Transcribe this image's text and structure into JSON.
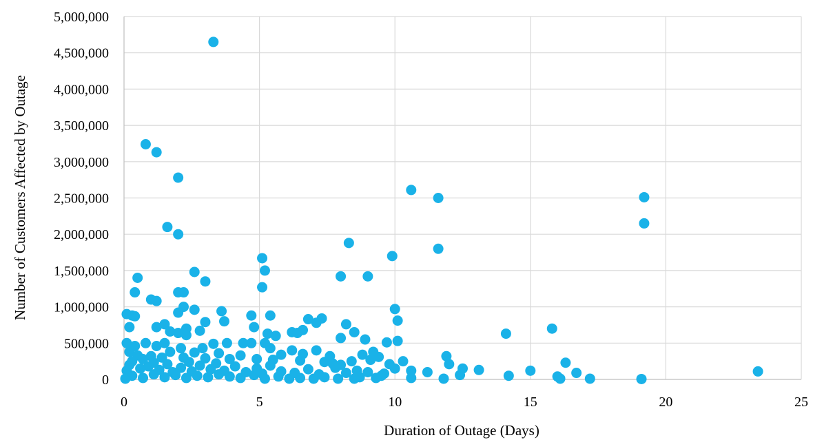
{
  "chart_data": {
    "type": "scatter",
    "title": "",
    "xlabel": "Duration of Outage (Days)",
    "ylabel": "Number of Customers Affected by Outage",
    "xlim": [
      0,
      25
    ],
    "ylim": [
      0,
      5000000
    ],
    "x_ticks": [
      0,
      5,
      10,
      15,
      20,
      25
    ],
    "y_ticks": [
      0,
      500000,
      1000000,
      1500000,
      2000000,
      2500000,
      3000000,
      3500000,
      4000000,
      4500000,
      5000000
    ],
    "x_tick_labels": [
      "0",
      "5",
      "10",
      "15",
      "20",
      "25"
    ],
    "y_tick_labels": [
      "0",
      "500,000",
      "1,000,000",
      "1,500,000",
      "2,000,000",
      "2,500,000",
      "3,000,000",
      "3,500,000",
      "4,000,000",
      "4,500,000",
      "5,000,000"
    ],
    "grid": "vertical and horizontal major gridlines",
    "legend": "none",
    "marker_color": "#1ab2e8",
    "series": [
      {
        "points": [
          [
            3.3,
            4650000
          ],
          [
            0.8,
            3240000
          ],
          [
            1.2,
            3130000
          ],
          [
            2.0,
            2780000
          ],
          [
            1.6,
            2100000
          ],
          [
            2.0,
            2000000
          ],
          [
            10.6,
            2610000
          ],
          [
            11.6,
            2500000
          ],
          [
            19.2,
            2510000
          ],
          [
            19.2,
            2150000
          ],
          [
            11.6,
            1800000
          ],
          [
            8.3,
            1880000
          ],
          [
            9.9,
            1700000
          ],
          [
            5.1,
            1670000
          ],
          [
            5.2,
            1500000
          ],
          [
            2.6,
            1480000
          ],
          [
            8.0,
            1420000
          ],
          [
            9.0,
            1420000
          ],
          [
            0.5,
            1400000
          ],
          [
            3.0,
            1350000
          ],
          [
            5.1,
            1270000
          ],
          [
            0.4,
            1200000
          ],
          [
            2.0,
            1200000
          ],
          [
            2.2,
            1200000
          ],
          [
            1.0,
            1100000
          ],
          [
            1.2,
            1080000
          ],
          [
            2.2,
            1000000
          ],
          [
            10.0,
            970000
          ],
          [
            2.6,
            960000
          ],
          [
            3.6,
            940000
          ],
          [
            2.0,
            920000
          ],
          [
            0.1,
            900000
          ],
          [
            0.3,
            880000
          ],
          [
            0.4,
            870000
          ],
          [
            4.7,
            880000
          ],
          [
            5.4,
            880000
          ],
          [
            6.8,
            830000
          ],
          [
            7.3,
            840000
          ],
          [
            3.7,
            800000
          ],
          [
            3.0,
            790000
          ],
          [
            10.1,
            810000
          ],
          [
            7.1,
            780000
          ],
          [
            1.5,
            760000
          ],
          [
            8.2,
            760000
          ],
          [
            0.2,
            720000
          ],
          [
            1.2,
            720000
          ],
          [
            2.3,
            700000
          ],
          [
            4.8,
            720000
          ],
          [
            15.8,
            700000
          ],
          [
            6.6,
            680000
          ],
          [
            2.8,
            670000
          ],
          [
            1.7,
            660000
          ],
          [
            6.2,
            650000
          ],
          [
            8.5,
            650000
          ],
          [
            6.4,
            640000
          ],
          [
            2.0,
            640000
          ],
          [
            14.1,
            630000
          ],
          [
            2.3,
            610000
          ],
          [
            5.3,
            630000
          ],
          [
            5.6,
            600000
          ],
          [
            8.0,
            570000
          ],
          [
            8.9,
            550000
          ],
          [
            9.7,
            510000
          ],
          [
            10.1,
            530000
          ],
          [
            0.1,
            500000
          ],
          [
            0.8,
            500000
          ],
          [
            1.5,
            500000
          ],
          [
            3.3,
            490000
          ],
          [
            3.8,
            500000
          ],
          [
            4.4,
            500000
          ],
          [
            4.7,
            500000
          ],
          [
            5.2,
            500000
          ],
          [
            0.4,
            460000
          ],
          [
            1.2,
            460000
          ],
          [
            2.1,
            430000
          ],
          [
            2.9,
            430000
          ],
          [
            5.4,
            430000
          ],
          [
            6.2,
            400000
          ],
          [
            7.1,
            400000
          ],
          [
            9.2,
            380000
          ],
          [
            0.2,
            380000
          ],
          [
            1.7,
            380000
          ],
          [
            2.6,
            370000
          ],
          [
            3.5,
            360000
          ],
          [
            4.3,
            330000
          ],
          [
            5.8,
            340000
          ],
          [
            6.6,
            350000
          ],
          [
            7.6,
            320000
          ],
          [
            8.8,
            340000
          ],
          [
            9.4,
            310000
          ],
          [
            11.9,
            320000
          ],
          [
            0.5,
            330000
          ],
          [
            1.0,
            320000
          ],
          [
            1.4,
            300000
          ],
          [
            2.2,
            300000
          ],
          [
            3.0,
            290000
          ],
          [
            3.9,
            280000
          ],
          [
            4.9,
            280000
          ],
          [
            5.5,
            270000
          ],
          [
            6.5,
            260000
          ],
          [
            7.4,
            240000
          ],
          [
            8.4,
            250000
          ],
          [
            9.1,
            270000
          ],
          [
            10.3,
            250000
          ],
          [
            16.3,
            230000
          ],
          [
            12.0,
            210000
          ],
          [
            7.7,
            220000
          ],
          [
            8.0,
            200000
          ],
          [
            9.8,
            210000
          ],
          [
            12.5,
            150000
          ],
          [
            10.0,
            150000
          ],
          [
            13.1,
            130000
          ],
          [
            15.0,
            120000
          ],
          [
            11.2,
            100000
          ],
          [
            16.7,
            90000
          ],
          [
            23.4,
            110000
          ],
          [
            14.2,
            50000
          ],
          [
            16.0,
            40000
          ],
          [
            16.1,
            10000
          ],
          [
            17.2,
            10000
          ],
          [
            19.1,
            5000
          ],
          [
            11.8,
            10000
          ],
          [
            10.6,
            20000
          ],
          [
            10.6,
            120000
          ],
          [
            9.5,
            50000
          ],
          [
            9.3,
            20000
          ],
          [
            8.7,
            30000
          ],
          [
            8.5,
            10000
          ],
          [
            7.9,
            10000
          ],
          [
            7.4,
            30000
          ],
          [
            7.0,
            10000
          ],
          [
            6.5,
            20000
          ],
          [
            6.1,
            10000
          ],
          [
            5.7,
            40000
          ],
          [
            5.2,
            10000
          ],
          [
            4.8,
            60000
          ],
          [
            4.3,
            20000
          ],
          [
            3.9,
            40000
          ],
          [
            3.5,
            70000
          ],
          [
            3.1,
            30000
          ],
          [
            2.7,
            50000
          ],
          [
            2.3,
            20000
          ],
          [
            1.9,
            60000
          ],
          [
            1.5,
            30000
          ],
          [
            1.1,
            70000
          ],
          [
            0.7,
            20000
          ],
          [
            0.3,
            50000
          ],
          [
            0.05,
            10000
          ],
          [
            0.1,
            120000
          ],
          [
            0.2,
            200000
          ],
          [
            0.3,
            250000
          ],
          [
            0.6,
            150000
          ],
          [
            0.7,
            280000
          ],
          [
            0.9,
            180000
          ],
          [
            1.1,
            230000
          ],
          [
            1.3,
            130000
          ],
          [
            1.6,
            210000
          ],
          [
            1.8,
            100000
          ],
          [
            2.1,
            160000
          ],
          [
            2.4,
            240000
          ],
          [
            2.5,
            110000
          ],
          [
            2.8,
            190000
          ],
          [
            3.2,
            140000
          ],
          [
            3.4,
            220000
          ],
          [
            3.7,
            120000
          ],
          [
            4.1,
            180000
          ],
          [
            4.5,
            100000
          ],
          [
            4.9,
            150000
          ],
          [
            5.1,
            80000
          ],
          [
            5.4,
            190000
          ],
          [
            5.8,
            110000
          ],
          [
            6.3,
            90000
          ],
          [
            6.8,
            140000
          ],
          [
            7.2,
            70000
          ],
          [
            7.8,
            160000
          ],
          [
            8.2,
            90000
          ],
          [
            8.6,
            120000
          ],
          [
            9.0,
            100000
          ],
          [
            9.6,
            80000
          ],
          [
            12.4,
            60000
          ]
        ]
      }
    ]
  }
}
